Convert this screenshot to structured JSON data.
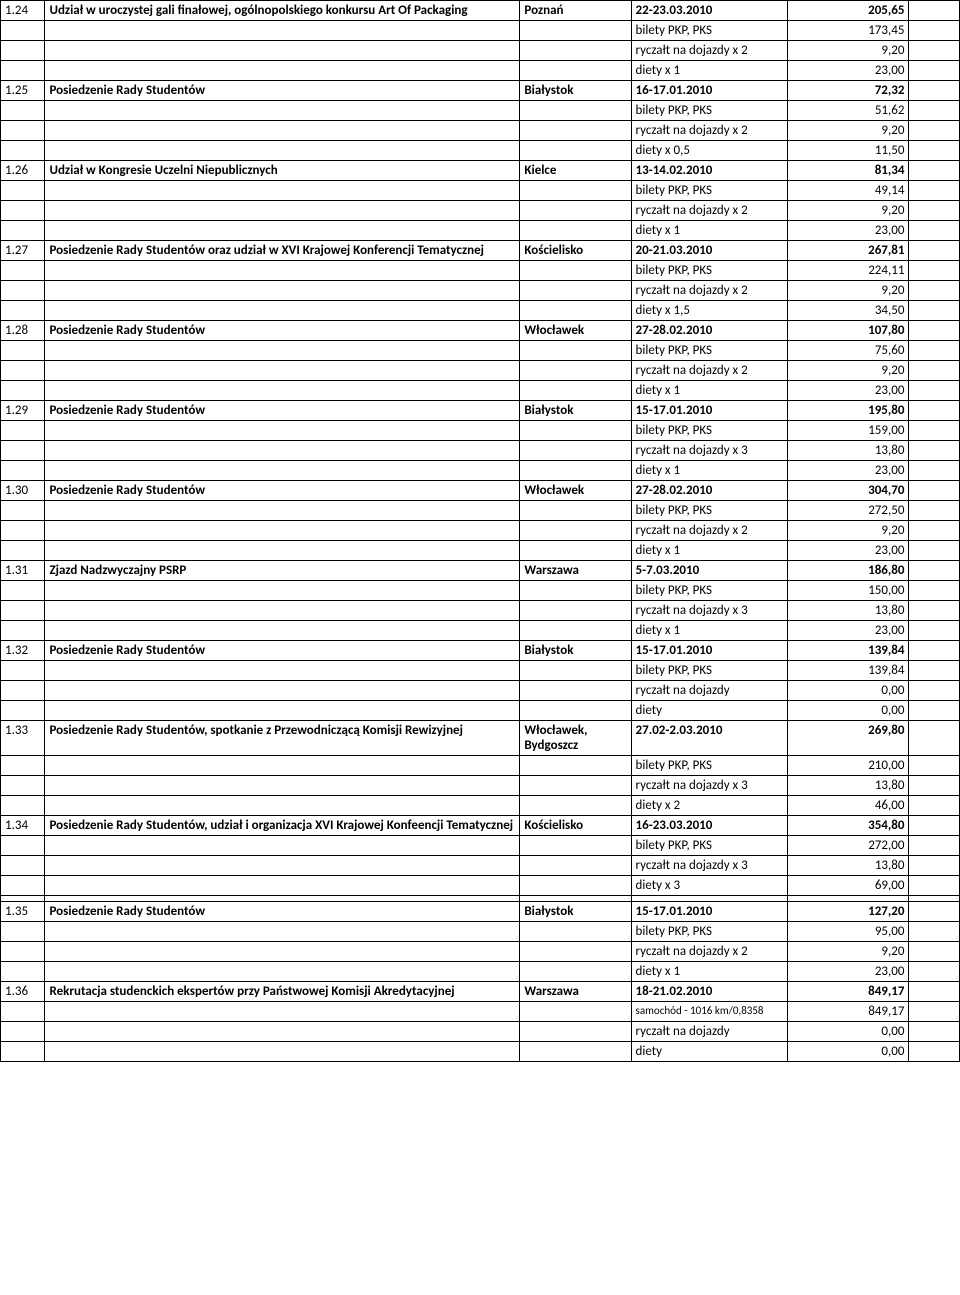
{
  "rows": [
    {
      "type": "main",
      "idx": "1.24",
      "desc": "Udział w uroczystej gali finałowej, ogólnopolskiego konkursu Art Of Packaging",
      "loc": "Poznań",
      "date": "22-23.03.2010",
      "amt": "205,65"
    },
    {
      "type": "detail",
      "desc": "bilety PKP, PKS",
      "amt": "173,45"
    },
    {
      "type": "detail",
      "desc": "ryczałt na dojazdy x 2",
      "amt": "9,20"
    },
    {
      "type": "detail",
      "desc": "diety x 1",
      "amt": "23,00"
    },
    {
      "type": "main",
      "idx": "1.25",
      "desc": "Posiedzenie Rady Studentów",
      "loc": "Białystok",
      "date": "16-17.01.2010",
      "amt": "72,32"
    },
    {
      "type": "detail",
      "desc": "bilety PKP, PKS",
      "amt": "51,62"
    },
    {
      "type": "detail",
      "desc": "ryczałt na dojazdy x 2",
      "amt": "9,20"
    },
    {
      "type": "detail",
      "desc": "diety x 0,5",
      "amt": "11,50"
    },
    {
      "type": "main",
      "idx": "1.26",
      "desc": "Udział w Kongresie Uczelni Niepublicznych",
      "loc": "Kielce",
      "date": "13-14.02.2010",
      "amt": "81,34"
    },
    {
      "type": "detail",
      "desc": "bilety PKP, PKS",
      "amt": "49,14"
    },
    {
      "type": "detail",
      "desc": "ryczałt na dojazdy x 2",
      "amt": "9,20"
    },
    {
      "type": "detail",
      "desc": "diety x 1",
      "amt": "23,00"
    },
    {
      "type": "main",
      "idx": "1.27",
      "desc": "Posiedzenie Rady Studentów oraz udział w XVI Krajowej Konferencji Tematycznej",
      "loc": "Kościelisko",
      "date": "20-21.03.2010",
      "amt": "267,81"
    },
    {
      "type": "detail",
      "desc": "bilety PKP, PKS",
      "amt": "224,11"
    },
    {
      "type": "detail",
      "desc": "ryczałt na dojazdy x 2",
      "amt": "9,20"
    },
    {
      "type": "detail",
      "desc": "diety x 1,5",
      "amt": "34,50"
    },
    {
      "type": "main",
      "idx": "1.28",
      "desc": "Posiedzenie Rady Studentów",
      "loc": "Włocławek",
      "date": "27-28.02.2010",
      "amt": "107,80"
    },
    {
      "type": "detail",
      "desc": "bilety PKP, PKS",
      "amt": "75,60"
    },
    {
      "type": "detail",
      "desc": "ryczałt na dojazdy x 2",
      "amt": "9,20"
    },
    {
      "type": "detail",
      "desc": "diety x 1",
      "amt": "23,00"
    },
    {
      "type": "main",
      "idx": "1.29",
      "desc": "Posiedzenie Rady Studentów",
      "loc": "Białystok",
      "date": "15-17.01.2010",
      "amt": "195,80"
    },
    {
      "type": "detail",
      "desc": "bilety PKP, PKS",
      "amt": "159,00"
    },
    {
      "type": "detail",
      "desc": "ryczałt na dojazdy x 3",
      "amt": "13,80"
    },
    {
      "type": "detail",
      "desc": "diety x 1",
      "amt": "23,00"
    },
    {
      "type": "main",
      "idx": "1.30",
      "desc": "Posiedzenie Rady Studentów",
      "loc": "Włocławek",
      "date": "27-28.02.2010",
      "amt": "304,70"
    },
    {
      "type": "detail",
      "desc": "bilety PKP, PKS",
      "amt": "272,50"
    },
    {
      "type": "detail",
      "desc": "ryczałt na dojazdy x 2",
      "amt": "9,20"
    },
    {
      "type": "detail",
      "desc": "diety x 1",
      "amt": "23,00"
    },
    {
      "type": "main",
      "idx": "1.31",
      "desc": "Zjazd Nadzwyczajny PSRP",
      "loc": "Warszawa",
      "date": "5-7.03.2010",
      "amt": "186,80"
    },
    {
      "type": "detail",
      "desc": "bilety PKP, PKS",
      "amt": "150,00"
    },
    {
      "type": "detail",
      "desc": "ryczałt na dojazdy x 3",
      "amt": "13,80"
    },
    {
      "type": "detail",
      "desc": "diety x 1",
      "amt": "23,00"
    },
    {
      "type": "main",
      "idx": "1.32",
      "desc": "Posiedzenie Rady Studentów",
      "loc": "Białystok",
      "date": "15-17.01.2010",
      "amt": "139,84"
    },
    {
      "type": "detail",
      "desc": "bilety PKP, PKS",
      "amt": "139,84"
    },
    {
      "type": "detail",
      "desc": "ryczałt na dojazdy",
      "amt": "0,00"
    },
    {
      "type": "detail",
      "desc": "diety",
      "amt": "0,00"
    },
    {
      "type": "main",
      "idx": "1.33",
      "desc": "Posiedzenie Rady Studentów, spotkanie z Przewodniczącą Komisji Rewizyjnej",
      "loc": "Włocławek, Bydgoszcz",
      "date": "27.02-2.03.2010",
      "amt": "269,80"
    },
    {
      "type": "detail",
      "desc": "bilety PKP, PKS",
      "amt": "210,00"
    },
    {
      "type": "detail",
      "desc": "ryczałt na dojazdy x 3",
      "amt": "13,80"
    },
    {
      "type": "detail",
      "desc": "diety x 2",
      "amt": "46,00"
    },
    {
      "type": "main",
      "idx": "1.34",
      "desc": "Posiedzenie Rady Studentów, udział i organizacja XVI Krajowej Konfeencji Tematycznej",
      "loc": "Kościelisko",
      "date": "16-23.03.2010",
      "amt": "354,80"
    },
    {
      "type": "detail",
      "desc": "bilety PKP, PKS",
      "amt": "272,00"
    },
    {
      "type": "detail",
      "desc": "ryczałt na dojazdy x 3",
      "amt": "13,80"
    },
    {
      "type": "detail",
      "desc": "diety x 3",
      "amt": "69,00"
    },
    {
      "type": "spacer"
    },
    {
      "type": "main",
      "idx": "1.35",
      "desc": "Posiedzenie Rady Studentów",
      "loc": "Białystok",
      "date": "15-17.01.2010",
      "amt": "127,20"
    },
    {
      "type": "detail",
      "desc": "bilety PKP, PKS",
      "amt": "95,00"
    },
    {
      "type": "detail",
      "desc": "ryczałt na dojazdy x 2",
      "amt": "9,20"
    },
    {
      "type": "detail",
      "desc": "diety x 1",
      "amt": "23,00"
    },
    {
      "type": "main",
      "idx": "1.36",
      "desc": "Rekrutacja studenckich ekspertów przy Państwowej Komisji Akredytacyjnej",
      "loc": "Warszawa",
      "date": "18-21.02.2010",
      "amt": "849,17"
    },
    {
      "type": "detail",
      "desc": "samochód - 1016 km/0,8358",
      "amt": "849,17",
      "small": true
    },
    {
      "type": "detail",
      "desc": "ryczałt na dojazdy",
      "amt": "0,00"
    },
    {
      "type": "detail",
      "desc": "diety",
      "amt": "0,00"
    }
  ]
}
